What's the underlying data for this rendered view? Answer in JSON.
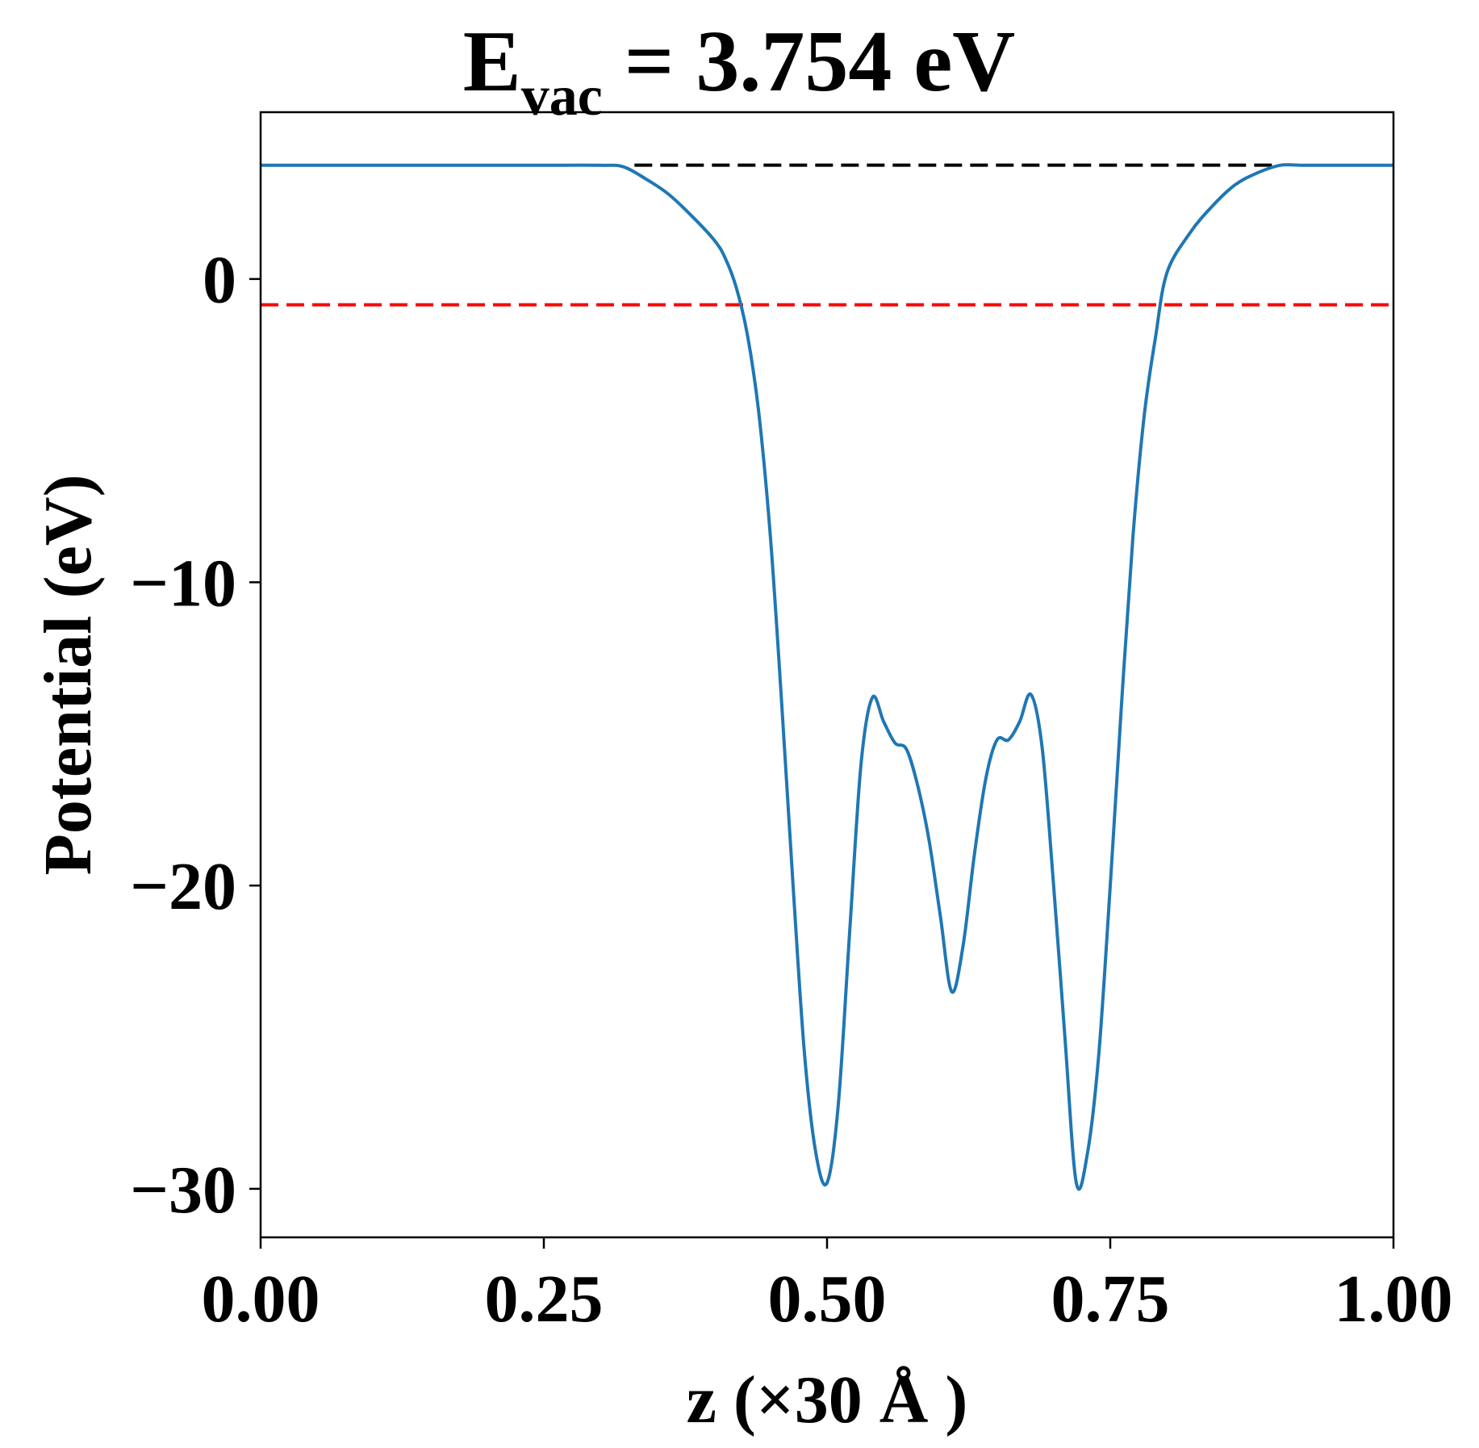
{
  "chart_data": {
    "type": "line",
    "title_main": "E",
    "title_sub": "vac",
    "title_rest": " = 3.754 eV",
    "xlabel": "z (×30 Å )",
    "ylabel": "Potential (eV)",
    "xlim": [
      0.0,
      1.0
    ],
    "ylim": [
      -31.6,
      5.5
    ],
    "xticks": [
      {
        "value": 0.0,
        "label": "0.00"
      },
      {
        "value": 0.25,
        "label": "0.25"
      },
      {
        "value": 0.5,
        "label": "0.50"
      },
      {
        "value": 0.75,
        "label": "0.75"
      },
      {
        "value": 1.0,
        "label": "1.00"
      }
    ],
    "yticks": [
      {
        "value": 0,
        "label": "0"
      },
      {
        "value": -10,
        "label": "−10"
      },
      {
        "value": -20,
        "label": "−20"
      },
      {
        "value": -30,
        "label": "−30"
      }
    ],
    "grid": false,
    "series": [
      {
        "color": "#1f77b4",
        "x": [
          0.0,
          0.05,
          0.1,
          0.15,
          0.2,
          0.25,
          0.3,
          0.32,
          0.34,
          0.36,
          0.38,
          0.4,
          0.41,
          0.42,
          0.43,
          0.44,
          0.45,
          0.46,
          0.47,
          0.48,
          0.49,
          0.5,
          0.51,
          0.52,
          0.53,
          0.54,
          0.55,
          0.56,
          0.57,
          0.58,
          0.59,
          0.6,
          0.61,
          0.62,
          0.63,
          0.64,
          0.65,
          0.66,
          0.67,
          0.68,
          0.69,
          0.7,
          0.71,
          0.72,
          0.73,
          0.74,
          0.75,
          0.76,
          0.77,
          0.78,
          0.79,
          0.8,
          0.82,
          0.84,
          0.86,
          0.88,
          0.9,
          0.92,
          0.95,
          1.0
        ],
        "y": [
          3.75,
          3.75,
          3.75,
          3.75,
          3.75,
          3.75,
          3.75,
          3.7,
          3.3,
          2.8,
          2.1,
          1.3,
          0.7,
          -0.3,
          -1.9,
          -4.5,
          -8.5,
          -14.0,
          -20.0,
          -25.5,
          -28.8,
          -29.8,
          -27.2,
          -21.5,
          -16.0,
          -13.8,
          -14.6,
          -15.3,
          -15.5,
          -16.7,
          -18.5,
          -21.0,
          -23.5,
          -22.0,
          -19.0,
          -16.5,
          -15.2,
          -15.2,
          -14.6,
          -13.7,
          -15.5,
          -20.0,
          -25.0,
          -29.8,
          -28.8,
          -25.5,
          -20.0,
          -14.0,
          -8.5,
          -4.5,
          -1.9,
          0.2,
          1.5,
          2.4,
          3.1,
          3.5,
          3.75,
          3.75,
          3.75,
          3.75
        ]
      }
    ],
    "reference_lines": [
      {
        "y": 3.754,
        "color": "#000000",
        "style": "dashed",
        "x_from": 0.33,
        "x_to": 0.9
      },
      {
        "y": -0.85,
        "color": "#ff0000",
        "style": "dashed",
        "x_from": 0.0,
        "x_to": 1.0
      }
    ]
  }
}
